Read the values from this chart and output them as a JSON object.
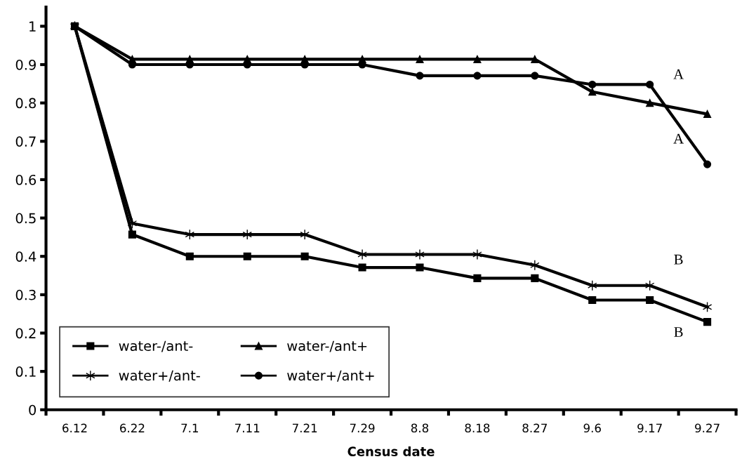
{
  "chart_data": {
    "type": "line",
    "xlabel": "Census date",
    "categories": [
      "6.12",
      "6.22",
      "7.1",
      "7.11",
      "7.21",
      "7.29",
      "8.8",
      "8.18",
      "8.27",
      "9.6",
      "9.17",
      "9.27"
    ],
    "series": [
      {
        "name": "water-/ant-",
        "color": "#000000",
        "marker": "square",
        "values": [
          1,
          0.457,
          0.4,
          0.4,
          0.4,
          0.371,
          0.371,
          0.343,
          0.343,
          0.286,
          0.286,
          0.229
        ]
      },
      {
        "name": "water-/ant+",
        "color": "#000000",
        "marker": "triangle",
        "values": [
          1,
          0.914,
          0.914,
          0.914,
          0.914,
          0.914,
          0.914,
          0.914,
          0.914,
          0.829,
          0.8,
          0.771
        ]
      },
      {
        "name": "water+/ant-",
        "color": "#000000",
        "marker": "cross",
        "values": [
          1,
          0.486,
          0.457,
          0.457,
          0.457,
          0.405,
          0.405,
          0.405,
          0.377,
          0.324,
          0.324,
          0.268
        ]
      },
      {
        "name": "water+/ant+",
        "color": "#000000",
        "marker": "circle",
        "values": [
          1,
          0.9,
          0.9,
          0.9,
          0.9,
          0.9,
          0.871,
          0.871,
          0.871,
          0.848,
          0.848,
          0.64
        ]
      }
    ],
    "annotations": [
      "A",
      "A",
      "B",
      "B"
    ],
    "ylim": [
      0,
      1.05
    ],
    "yticks": [
      0,
      0.1,
      0.2,
      0.3,
      0.4,
      0.5,
      0.6,
      0.7,
      0.8,
      0.9,
      1
    ],
    "grid": false,
    "legend": "bottom left",
    "line_style": "solid"
  }
}
